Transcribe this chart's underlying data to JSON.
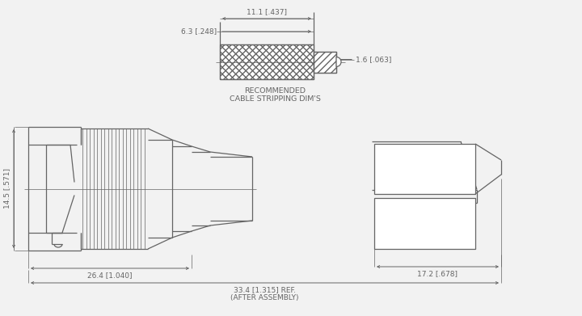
{
  "bg_color": "#f2f2f2",
  "line_color": "#646464",
  "dim_color": "#646464",
  "text_color": "#646464",
  "title_lines": [
    "RECOMMENDED",
    "CABLE STRIPPING DIM'S"
  ],
  "dim_top_11": "11.1 [.437]",
  "dim_top_63": "6.3 [.248]",
  "dim_top_16": "1.6 [.063]",
  "dim_left_145": "14.5 [.571]",
  "dim_bot_264": "26.4 [1.040]",
  "dim_bot_334": "33.4 [1.315] REF.",
  "dim_bot_after": "(AFTER ASSEMBLY)",
  "dim_right_172": "17.2 [.678]",
  "font_size": 6.5
}
